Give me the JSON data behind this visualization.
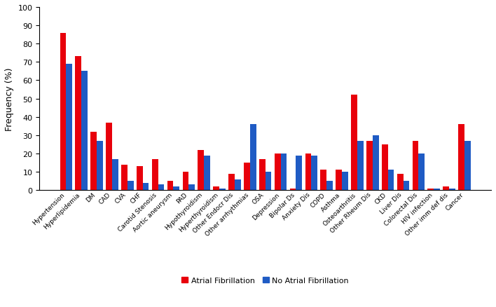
{
  "categories": [
    "Hypertension",
    "Hyperlipidemia",
    "DM",
    "CAD",
    "CVA",
    "CHF",
    "Carotid Stenosis",
    "Aortic aneurysm",
    "PAD",
    "Hypothyroidism",
    "Hyperthyroidism",
    "Other Endocr Dis",
    "Other arrhythmias",
    "OSA",
    "Depression",
    "Bipolar Ds",
    "Anxiety Dis",
    "COPD",
    "Asthma",
    "Osteoarthritis",
    "Other Rheum Dis",
    "CKD",
    "Liver Dis",
    "Colorectal Dis",
    "HIV infection",
    "Other imm def dis",
    "Cancer"
  ],
  "af_values": [
    86,
    73,
    32,
    37,
    14,
    13,
    17,
    5,
    10,
    22,
    2,
    9,
    15,
    17,
    20,
    1,
    20,
    11,
    11,
    52,
    27,
    25,
    9,
    27,
    1,
    2,
    36
  ],
  "no_af_values": [
    69,
    65,
    27,
    17,
    5,
    4,
    3,
    2,
    3,
    19,
    1,
    6,
    36,
    10,
    20,
    19,
    19,
    5,
    10,
    27,
    30,
    11,
    5,
    20,
    1,
    1,
    27
  ],
  "af_color": "#e8000b",
  "no_af_color": "#1f5bc4",
  "ylabel": "Frequency (%)",
  "ylim": [
    0,
    100
  ],
  "yticks": [
    0,
    10,
    20,
    30,
    40,
    50,
    60,
    70,
    80,
    90,
    100
  ],
  "legend_af": "Atrial Fibrillation",
  "legend_no_af": "No Atrial Fibrillation",
  "bar_width": 0.4
}
